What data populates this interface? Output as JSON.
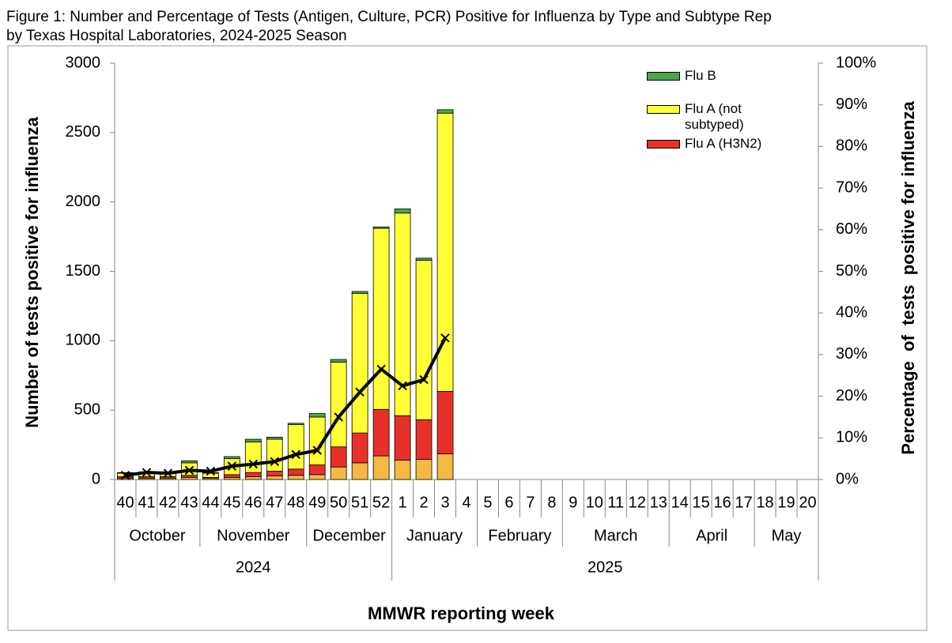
{
  "chart_data": {
    "type": "bar",
    "title": [
      "Figure 1: Number and Percentage of Tests (Antigen, Culture, PCR) Positive for Influenza by Type and Subtype Rep",
      "by Texas Hospital Laboratories, 2024-2025 Season"
    ],
    "xlabel": "MMWR reporting week",
    "ylabel": "Number of tests positive for influenza",
    "y2label": "Percentage  of  tests  positive for influenza",
    "categories": [
      "40",
      "41",
      "42",
      "43",
      "44",
      "45",
      "46",
      "47",
      "48",
      "49",
      "50",
      "51",
      "52",
      "1",
      "2",
      "3",
      "4",
      "5",
      "6",
      "7",
      "8",
      "9",
      "10",
      "11",
      "12",
      "13",
      "14",
      "15",
      "16",
      "17",
      "18",
      "19",
      "20"
    ],
    "months": [
      {
        "label": "October",
        "span": 4
      },
      {
        "label": "November",
        "span": 5
      },
      {
        "label": "December",
        "span": 4
      },
      {
        "label": "January",
        "span": 4
      },
      {
        "label": "February",
        "span": 4
      },
      {
        "label": "March",
        "span": 5
      },
      {
        "label": "April",
        "span": 4
      },
      {
        "label": "May",
        "span": 3
      }
    ],
    "years": [
      {
        "label": "2024",
        "span": 13
      },
      {
        "label": "2025",
        "span": 20
      }
    ],
    "ylim": [
      0,
      3000
    ],
    "yticks": [
      0,
      500,
      1000,
      1500,
      2000,
      2500,
      3000
    ],
    "y2lim": [
      0,
      100
    ],
    "y2ticks": [
      {
        "value": 0,
        "label": "0%"
      },
      {
        "value": 10,
        "label": "10%"
      },
      {
        "value": 20,
        "label": "20%"
      },
      {
        "value": 30,
        "label": "30%"
      },
      {
        "value": 40,
        "label": "40%"
      },
      {
        "value": 50,
        "label": "50%"
      },
      {
        "value": 60,
        "label": "60%"
      },
      {
        "value": 70,
        "label": "70%"
      },
      {
        "value": 80,
        "label": "80%"
      },
      {
        "value": 90,
        "label": "90%"
      },
      {
        "value": 100,
        "label": "100%"
      }
    ],
    "series": [
      {
        "type": "bar",
        "color": "#f4b942",
        "values": [
          10,
          10,
          10,
          15,
          10,
          15,
          20,
          25,
          30,
          35,
          90,
          120,
          170,
          140,
          145,
          185,
          null,
          null,
          null,
          null,
          null,
          null,
          null,
          null,
          null,
          null,
          null,
          null,
          null,
          null,
          null,
          null,
          null
        ]
      },
      {
        "type": "bar",
        "name": "Flu A (H3N2)",
        "color": "#e8302a",
        "values": [
          10,
          10,
          10,
          15,
          5,
          20,
          30,
          35,
          45,
          70,
          145,
          215,
          335,
          320,
          285,
          450,
          null,
          null,
          null,
          null,
          null,
          null,
          null,
          null,
          null,
          null,
          null,
          null,
          null,
          null,
          null,
          null,
          null
        ]
      },
      {
        "type": "bar",
        "name": "Flu A (not subtyped)",
        "color": "#ffff33",
        "values": [
          25,
          30,
          30,
          90,
          30,
          115,
          220,
          230,
          320,
          345,
          610,
          1005,
          1305,
          1460,
          1150,
          2005,
          null,
          null,
          null,
          null,
          null,
          null,
          null,
          null,
          null,
          null,
          null,
          null,
          null,
          null,
          null,
          null,
          null
        ]
      },
      {
        "type": "bar",
        "name": "Flu B",
        "color": "#4aa64a",
        "values": [
          5,
          5,
          5,
          15,
          5,
          15,
          20,
          15,
          10,
          25,
          20,
          15,
          10,
          30,
          15,
          25,
          null,
          null,
          null,
          null,
          null,
          null,
          null,
          null,
          null,
          null,
          null,
          null,
          null,
          null,
          null,
          null,
          null
        ]
      },
      {
        "type": "line",
        "axis": "y2",
        "color": "#000000",
        "values": [
          1,
          1.7,
          1.5,
          2.2,
          2,
          3.2,
          3.7,
          4.3,
          6,
          7,
          15,
          21,
          26.5,
          22.5,
          24,
          34,
          null,
          null,
          null,
          null,
          null,
          null,
          null,
          null,
          null,
          null,
          null,
          null,
          null,
          null,
          null,
          null,
          null
        ]
      }
    ]
  }
}
